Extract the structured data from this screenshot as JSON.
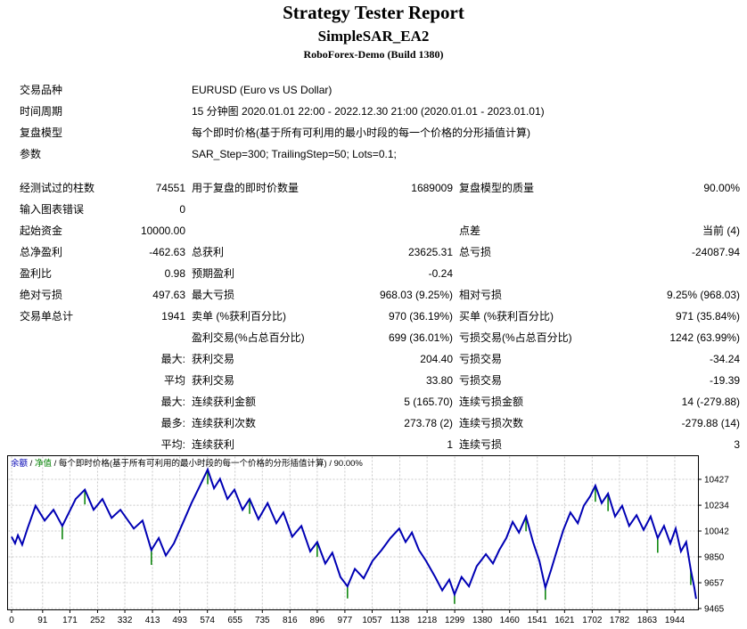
{
  "header": {
    "title": "Strategy Tester Report",
    "ea": "SimpleSAR_EA2",
    "server": "RoboForex-Demo (Build 1380)"
  },
  "report": {
    "rows": [
      {
        "cells": [
          {
            "t": "交易品种"
          },
          {
            "t": ""
          },
          {
            "t": "EURUSD (Euro vs US Dollar)",
            "cs": 4
          }
        ]
      },
      {
        "cells": [
          {
            "t": "时间周期"
          },
          {
            "t": ""
          },
          {
            "t": "15 分钟图 2020.01.01 22:00 - 2022.12.30 21:00 (2020.01.01 - 2023.01.01)",
            "cs": 4
          }
        ]
      },
      {
        "cells": [
          {
            "t": "复盘模型"
          },
          {
            "t": ""
          },
          {
            "t": "每个即时价格(基于所有可利用的最小时段的每一个价格的分形插值计算)",
            "cs": 4
          }
        ]
      },
      {
        "cells": [
          {
            "t": "参数"
          },
          {
            "t": ""
          },
          {
            "t": "SAR_Step=300; TrailingStep=50; Lots=0.1;",
            "cs": 4
          }
        ]
      },
      {
        "gap": true
      },
      {
        "cells": [
          {
            "t": "经测试过的柱数"
          },
          {
            "t": "74551"
          },
          {
            "t": "用于复盘的即时价数量"
          },
          {
            "t": "1689009"
          },
          {
            "t": "复盘模型的质量"
          },
          {
            "t": "90.00%"
          }
        ]
      },
      {
        "cells": [
          {
            "t": "输入图表错误"
          },
          {
            "t": "0"
          },
          {
            "t": ""
          },
          {
            "t": ""
          },
          {
            "t": ""
          },
          {
            "t": ""
          }
        ]
      },
      {
        "cells": [
          {
            "t": "起始资金"
          },
          {
            "t": "10000.00"
          },
          {
            "t": ""
          },
          {
            "t": ""
          },
          {
            "t": "点差"
          },
          {
            "t": "当前 (4)"
          }
        ]
      },
      {
        "cells": [
          {
            "t": "总净盈利"
          },
          {
            "t": "-462.63"
          },
          {
            "t": "总获利"
          },
          {
            "t": "23625.31"
          },
          {
            "t": "总亏损"
          },
          {
            "t": "-24087.94"
          }
        ]
      },
      {
        "cells": [
          {
            "t": "盈利比"
          },
          {
            "t": "0.98"
          },
          {
            "t": "预期盈利"
          },
          {
            "t": "-0.24"
          },
          {
            "t": ""
          },
          {
            "t": ""
          }
        ]
      },
      {
        "cells": [
          {
            "t": "绝对亏损"
          },
          {
            "t": "497.63"
          },
          {
            "t": "最大亏损"
          },
          {
            "t": "968.03 (9.25%)"
          },
          {
            "t": "相对亏损"
          },
          {
            "t": "9.25% (968.03)"
          }
        ]
      },
      {
        "cells": [
          {
            "t": "交易单总计"
          },
          {
            "t": "1941"
          },
          {
            "t": "卖单 (%获利百分比)"
          },
          {
            "t": "970 (36.19%)"
          },
          {
            "t": "买单 (%获利百分比)"
          },
          {
            "t": "971 (35.84%)"
          }
        ]
      },
      {
        "cells": [
          {
            "t": ""
          },
          {
            "t": ""
          },
          {
            "t": "盈利交易(%占总百分比)"
          },
          {
            "t": "699 (36.01%)"
          },
          {
            "t": "亏损交易(%占总百分比)"
          },
          {
            "t": "1242 (63.99%)"
          }
        ]
      },
      {
        "cells": [
          {
            "t": ""
          },
          {
            "t": "最大:"
          },
          {
            "t": "获利交易"
          },
          {
            "t": "204.40"
          },
          {
            "t": "亏损交易"
          },
          {
            "t": "-34.24"
          }
        ]
      },
      {
        "cells": [
          {
            "t": ""
          },
          {
            "t": "平均"
          },
          {
            "t": "获利交易"
          },
          {
            "t": "33.80"
          },
          {
            "t": "亏损交易"
          },
          {
            "t": "-19.39"
          }
        ]
      },
      {
        "cells": [
          {
            "t": ""
          },
          {
            "t": "最大:"
          },
          {
            "t": "连续获利金额"
          },
          {
            "t": "5 (165.70)"
          },
          {
            "t": "连续亏损金额"
          },
          {
            "t": "14 (-279.88)"
          }
        ]
      },
      {
        "cells": [
          {
            "t": ""
          },
          {
            "t": "最多:"
          },
          {
            "t": "连续获利次数"
          },
          {
            "t": "273.78 (2)"
          },
          {
            "t": "连续亏损次数"
          },
          {
            "t": "-279.88 (14)"
          }
        ]
      },
      {
        "cells": [
          {
            "t": ""
          },
          {
            "t": "平均:"
          },
          {
            "t": "连续获利"
          },
          {
            "t": "1"
          },
          {
            "t": "连续亏损"
          },
          {
            "t": "3"
          }
        ]
      }
    ]
  },
  "chart_data": {
    "type": "line",
    "legend_parts": [
      {
        "text": "余额",
        "color": "#0000B4"
      },
      {
        "text": " / ",
        "color": "#000000"
      },
      {
        "text": "净值",
        "color": "#008000"
      },
      {
        "text": " / 每个即时价格(基于所有可利用的最小时段的每一个价格的分形插值计算) / 90.00%",
        "color": "#000000"
      }
    ],
    "x_ticks": [
      0,
      91,
      171,
      252,
      332,
      413,
      493,
      574,
      655,
      735,
      816,
      896,
      977,
      1057,
      1138,
      1218,
      1299,
      1380,
      1460,
      1541,
      1621,
      1702,
      1782,
      1863,
      1944
    ],
    "y_ticks": [
      10427,
      10234,
      10042,
      9850,
      9657,
      9465
    ],
    "xlim": [
      0,
      1944
    ],
    "ylim": [
      9455,
      10610
    ],
    "grid": true,
    "colors": {
      "balance": "#0000B4",
      "equity": "#008000",
      "gridline": "#c9c9c9",
      "border": "#000000",
      "plot_bg": "#ffffff"
    },
    "series": [
      {
        "name": "余额",
        "type": "line",
        "color": "#0000B4",
        "points": [
          [
            0,
            10000
          ],
          [
            10,
            9950
          ],
          [
            18,
            10010
          ],
          [
            30,
            9940
          ],
          [
            45,
            10060
          ],
          [
            68,
            10230
          ],
          [
            94,
            10120
          ],
          [
            119,
            10200
          ],
          [
            144,
            10080
          ],
          [
            182,
            10280
          ],
          [
            208,
            10350
          ],
          [
            233,
            10200
          ],
          [
            258,
            10280
          ],
          [
            284,
            10140
          ],
          [
            309,
            10200
          ],
          [
            347,
            10060
          ],
          [
            372,
            10120
          ],
          [
            397,
            9900
          ],
          [
            418,
            9990
          ],
          [
            438,
            9860
          ],
          [
            461,
            9950
          ],
          [
            486,
            10100
          ],
          [
            511,
            10250
          ],
          [
            537,
            10390
          ],
          [
            557,
            10500
          ],
          [
            575,
            10360
          ],
          [
            592,
            10430
          ],
          [
            613,
            10280
          ],
          [
            633,
            10350
          ],
          [
            656,
            10200
          ],
          [
            676,
            10280
          ],
          [
            701,
            10130
          ],
          [
            727,
            10250
          ],
          [
            752,
            10100
          ],
          [
            772,
            10180
          ],
          [
            797,
            10000
          ],
          [
            823,
            10080
          ],
          [
            848,
            9890
          ],
          [
            868,
            9960
          ],
          [
            891,
            9800
          ],
          [
            911,
            9880
          ],
          [
            934,
            9700
          ],
          [
            954,
            9630
          ],
          [
            975,
            9760
          ],
          [
            1000,
            9690
          ],
          [
            1025,
            9820
          ],
          [
            1051,
            9900
          ],
          [
            1076,
            9990
          ],
          [
            1101,
            10060
          ],
          [
            1119,
            9960
          ],
          [
            1137,
            10030
          ],
          [
            1157,
            9900
          ],
          [
            1177,
            9820
          ],
          [
            1203,
            9700
          ],
          [
            1223,
            9600
          ],
          [
            1243,
            9680
          ],
          [
            1258,
            9570
          ],
          [
            1278,
            9700
          ],
          [
            1299,
            9630
          ],
          [
            1321,
            9780
          ],
          [
            1347,
            9870
          ],
          [
            1367,
            9800
          ],
          [
            1385,
            9900
          ],
          [
            1405,
            9990
          ],
          [
            1423,
            10110
          ],
          [
            1441,
            10030
          ],
          [
            1461,
            10150
          ],
          [
            1481,
            9960
          ],
          [
            1499,
            9820
          ],
          [
            1516,
            9620
          ],
          [
            1532,
            9750
          ],
          [
            1549,
            9900
          ],
          [
            1567,
            10050
          ],
          [
            1587,
            10180
          ],
          [
            1608,
            10100
          ],
          [
            1625,
            10230
          ],
          [
            1643,
            10300
          ],
          [
            1658,
            10380
          ],
          [
            1676,
            10250
          ],
          [
            1694,
            10320
          ],
          [
            1714,
            10150
          ],
          [
            1734,
            10230
          ],
          [
            1754,
            10080
          ],
          [
            1775,
            10160
          ],
          [
            1795,
            10050
          ],
          [
            1815,
            10150
          ],
          [
            1835,
            9990
          ],
          [
            1853,
            10080
          ],
          [
            1871,
            9950
          ],
          [
            1886,
            10060
          ],
          [
            1901,
            9890
          ],
          [
            1916,
            9960
          ],
          [
            1929,
            9750
          ],
          [
            1939,
            9620
          ],
          [
            1944,
            9537
          ]
        ]
      },
      {
        "name": "净值",
        "type": "drawdown-spikes",
        "color": "#008000",
        "spikes": [
          [
            144,
            10080,
            9980
          ],
          [
            208,
            10350,
            10240
          ],
          [
            397,
            9900,
            9790
          ],
          [
            557,
            10500,
            10390
          ],
          [
            676,
            10280,
            10170
          ],
          [
            868,
            9960,
            9850
          ],
          [
            954,
            9630,
            9540
          ],
          [
            1258,
            9570,
            9500
          ],
          [
            1461,
            10150,
            10040
          ],
          [
            1516,
            9620,
            9530
          ],
          [
            1658,
            10380,
            10260
          ],
          [
            1694,
            10320,
            10190
          ],
          [
            1835,
            9990,
            9880
          ],
          [
            1929,
            9750,
            9640
          ]
        ]
      }
    ]
  }
}
